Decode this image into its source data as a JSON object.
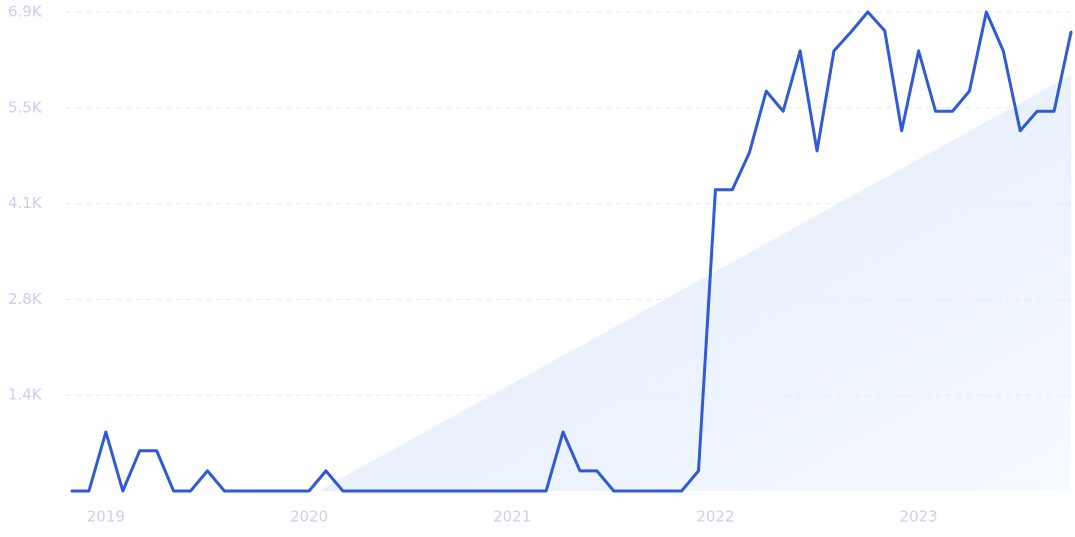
{
  "chart_data": {
    "type": "line",
    "x": [
      2018.8333,
      2018.9167,
      2019.0,
      2019.0833,
      2019.1667,
      2019.25,
      2019.3333,
      2019.4167,
      2019.5,
      2019.5833,
      2019.6667,
      2019.75,
      2019.8333,
      2019.9167,
      2020.0,
      2020.0833,
      2020.1667,
      2020.25,
      2020.3333,
      2020.4167,
      2020.5,
      2020.5833,
      2020.6667,
      2020.75,
      2020.8333,
      2020.9167,
      2021.0,
      2021.0833,
      2021.1667,
      2021.25,
      2021.3333,
      2021.4167,
      2021.5,
      2021.5833,
      2021.6667,
      2021.75,
      2021.8333,
      2021.9167,
      2022.0,
      2022.0833,
      2022.1667,
      2022.25,
      2022.3333,
      2022.4167,
      2022.5,
      2022.5833,
      2022.6667,
      2022.75,
      2022.8333,
      2022.9167,
      2023.0,
      2023.0833,
      2023.1667,
      2023.25,
      2023.3333,
      2023.4167,
      2023.5,
      2023.5833,
      2023.6667,
      2023.75
    ],
    "values": [
      0,
      0,
      850,
      0,
      580,
      580,
      0,
      0,
      290,
      0,
      0,
      0,
      0,
      0,
      0,
      290,
      0,
      0,
      0,
      0,
      0,
      0,
      0,
      0,
      0,
      0,
      0,
      0,
      0,
      850,
      290,
      290,
      0,
      0,
      0,
      0,
      0,
      290,
      4340,
      4340,
      4870,
      5760,
      5470,
      6340,
      4900,
      6340,
      6610,
      6900,
      6630,
      5190,
      6340,
      5470,
      5470,
      5760,
      6900,
      6340,
      5190,
      5470,
      5470,
      6610
    ],
    "color": "#2f5ad8",
    "xlim": [
      2018.8333,
      2023.75
    ],
    "xticks": [
      2019,
      2020,
      2021,
      2022,
      2023
    ],
    "ylim": [
      0,
      6900
    ],
    "yticks": [
      {
        "value": 1380,
        "label": "1.4K"
      },
      {
        "value": 2760,
        "label": "2.8K"
      },
      {
        "value": 4140,
        "label": "4.1K"
      },
      {
        "value": 5520,
        "label": "5.5K"
      },
      {
        "value": 6900,
        "label": "6.9K"
      }
    ],
    "grid": true
  }
}
